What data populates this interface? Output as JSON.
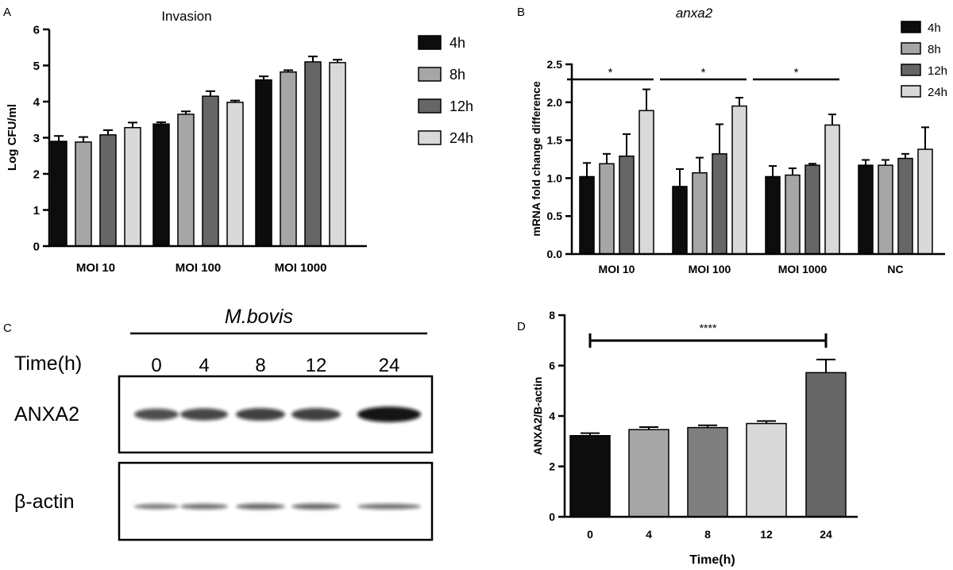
{
  "panels": {
    "a": "A",
    "b": "B",
    "c": "C",
    "d": "D"
  },
  "colors": {
    "h4": "#0d0d0d",
    "h8": "#a6a6a6",
    "h12": "#666666",
    "h24": "#d9d9d9",
    "d0": "#0d0d0d",
    "d4": "#a6a6a6",
    "d8": "#7f7f7f",
    "d12": "#d9d9d9",
    "d24": "#666666"
  },
  "chart_data": [
    {
      "id": "A",
      "type": "bar",
      "title": "Invasion",
      "xlabel": "",
      "ylabel": "Log CFU/ml",
      "ylim": [
        0,
        6
      ],
      "yticks": [
        0,
        1,
        2,
        3,
        4,
        5,
        6
      ],
      "categories": [
        "MOI 10",
        "MOI 100",
        "MOI 1000"
      ],
      "legend_position": "right",
      "series": [
        {
          "name": "4h",
          "values": [
            2.9,
            3.38,
            4.6
          ],
          "errors": [
            0.15,
            0.05,
            0.1
          ]
        },
        {
          "name": "8h",
          "values": [
            2.88,
            3.65,
            4.82
          ],
          "errors": [
            0.14,
            0.08,
            0.05
          ]
        },
        {
          "name": "12h",
          "values": [
            3.08,
            4.15,
            5.1
          ],
          "errors": [
            0.13,
            0.14,
            0.15
          ]
        },
        {
          "name": "24h",
          "values": [
            3.28,
            3.98,
            5.08
          ],
          "errors": [
            0.14,
            0.05,
            0.08
          ]
        }
      ]
    },
    {
      "id": "B",
      "type": "bar",
      "title": "anxa2",
      "xlabel": "",
      "ylabel": "mRNA fold change difference",
      "ylim": [
        0,
        2.5
      ],
      "yticks": [
        "0.0",
        "0.5",
        "1.0",
        "1.5",
        "2.0",
        "2.5"
      ],
      "categories": [
        "MOI 10",
        "MOI 100",
        "MOI 1000",
        "NC"
      ],
      "legend_position": "top-right",
      "series": [
        {
          "name": "4h",
          "values": [
            1.02,
            0.89,
            1.02,
            1.17
          ],
          "errors": [
            0.18,
            0.23,
            0.14,
            0.07
          ]
        },
        {
          "name": "8h",
          "values": [
            1.19,
            1.07,
            1.04,
            1.17
          ],
          "errors": [
            0.13,
            0.2,
            0.09,
            0.07
          ]
        },
        {
          "name": "12h",
          "values": [
            1.29,
            1.32,
            1.17,
            1.26
          ],
          "errors": [
            0.29,
            0.39,
            0.02,
            0.06
          ]
        },
        {
          "name": "24h",
          "values": [
            1.89,
            1.95,
            1.7,
            1.38
          ],
          "errors": [
            0.28,
            0.11,
            0.14,
            0.29
          ]
        }
      ],
      "annotations": [
        {
          "label": "*",
          "group": "MOI 10"
        },
        {
          "label": "*",
          "group": "MOI 100"
        },
        {
          "label": "*",
          "group": "MOI 1000"
        }
      ]
    },
    {
      "id": "D",
      "type": "bar",
      "title": "",
      "xlabel": "Time(h)",
      "ylabel": "ANXA2/B-actin",
      "ylim": [
        0,
        8
      ],
      "yticks": [
        0,
        2,
        4,
        6,
        8
      ],
      "categories": [
        "0",
        "4",
        "8",
        "12",
        "24"
      ],
      "values": [
        3.22,
        3.46,
        3.54,
        3.7,
        5.72
      ],
      "errors": [
        0.1,
        0.1,
        0.09,
        0.1,
        0.52
      ],
      "annotations": [
        {
          "label": "****",
          "from": "0",
          "to": "24"
        }
      ]
    }
  ],
  "blot": {
    "treatment": "M.bovis",
    "time_label": "Time(h)",
    "lanes": [
      "0",
      "4",
      "8",
      "12",
      "24"
    ],
    "rows": [
      {
        "label": "ANXA2",
        "band_intensity": [
          0.55,
          0.6,
          0.65,
          0.65,
          0.95
        ]
      },
      {
        "label": "β-actin",
        "band_intensity": [
          0.25,
          0.3,
          0.35,
          0.35,
          0.3
        ]
      }
    ]
  }
}
